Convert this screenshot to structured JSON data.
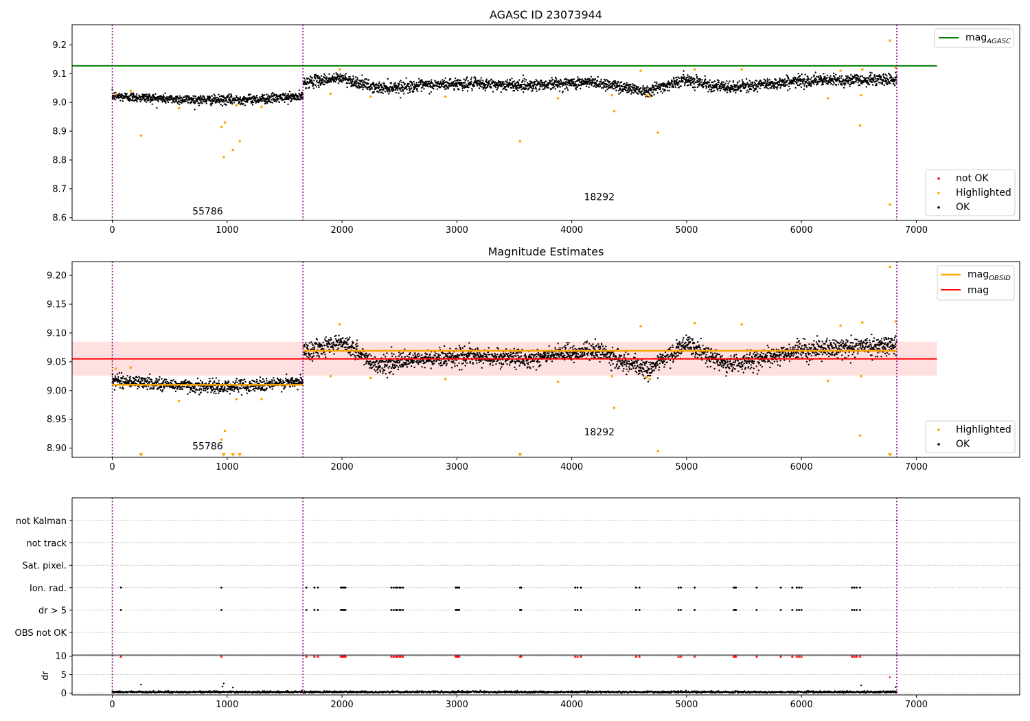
{
  "chart_data": [
    {
      "type": "scatter",
      "title": "AGASC ID 23073944",
      "xlabel": "",
      "ylabel": "",
      "xlim": [
        -350,
        7900
      ],
      "ylim": [
        8.59,
        9.27
      ],
      "x_ticks": [
        0,
        1000,
        2000,
        3000,
        4000,
        5000,
        6000,
        7000
      ],
      "y_ticks": [
        "8.6",
        "8.7",
        "8.8",
        "8.9",
        "9.0",
        "9.1",
        "9.2"
      ],
      "y_tick_values": [
        8.6,
        8.7,
        8.8,
        8.9,
        9.0,
        9.1,
        9.2
      ],
      "grid": false,
      "vlines": [
        0,
        1660,
        6830
      ],
      "hline": {
        "value": 9.127,
        "x_range": [
          -350,
          7180
        ],
        "color": "#008000"
      },
      "obsid_labels": [
        {
          "text": "55786",
          "x": 830,
          "y": 8.61
        },
        {
          "text": "18292",
          "x": 4240,
          "y": 8.66
        }
      ],
      "legend_top": {
        "position": "top-right",
        "entries": [
          {
            "label": "mag",
            "sub": "AGASC",
            "color": "#008000"
          }
        ]
      },
      "legend_bottom": {
        "position": "bottom-right",
        "entries": [
          {
            "label": "not OK",
            "color": "#ff0000"
          },
          {
            "label": "Highlighted",
            "color": "#ffa500"
          },
          {
            "label": "OK",
            "color": "#000000"
          }
        ]
      },
      "segments": [
        {
          "x_range": [
            0,
            1660
          ],
          "base": 9.015,
          "noise": 0.015,
          "trend": [
            [
              0,
              9.022
            ],
            [
              500,
              9.012
            ],
            [
              900,
              9.008
            ],
            [
              1300,
              9.012
            ],
            [
              1660,
              9.02
            ]
          ]
        },
        {
          "x_range": [
            1665,
            6830
          ],
          "base": 9.07,
          "noise": 0.018,
          "trend": [
            [
              1665,
              9.07
            ],
            [
              2000,
              9.085
            ],
            [
              2300,
              9.05
            ],
            [
              3000,
              9.065
            ],
            [
              3600,
              9.06
            ],
            [
              4200,
              9.07
            ],
            [
              4650,
              9.04
            ],
            [
              5000,
              9.08
            ],
            [
              5350,
              9.05
            ],
            [
              6000,
              9.075
            ],
            [
              6830,
              9.08
            ]
          ]
        }
      ],
      "highlighted": [
        [
          30,
          9.03
        ],
        [
          160,
          9.04
        ],
        [
          250,
          8.885
        ],
        [
          580,
          8.98
        ],
        [
          950,
          8.915
        ],
        [
          970,
          8.81
        ],
        [
          980,
          8.93
        ],
        [
          1050,
          8.835
        ],
        [
          1080,
          8.99
        ],
        [
          1110,
          8.865
        ],
        [
          1300,
          8.985
        ],
        [
          1900,
          9.03
        ],
        [
          1980,
          9.115
        ],
        [
          2250,
          9.02
        ],
        [
          2900,
          9.02
        ],
        [
          3550,
          8.865
        ],
        [
          3880,
          9.015
        ],
        [
          4350,
          9.025
        ],
        [
          4370,
          8.97
        ],
        [
          4600,
          9.11
        ],
        [
          4650,
          9.025
        ],
        [
          4680,
          9.02
        ],
        [
          4750,
          8.895
        ],
        [
          5070,
          9.115
        ],
        [
          5480,
          9.115
        ],
        [
          6230,
          9.015
        ],
        [
          6340,
          9.11
        ],
        [
          6510,
          8.92
        ],
        [
          6520,
          9.025
        ],
        [
          6530,
          9.115
        ],
        [
          6770,
          9.215
        ],
        [
          6770,
          8.645
        ],
        [
          6820,
          9.12
        ]
      ]
    },
    {
      "type": "scatter",
      "title": "Magnitude Estimates",
      "xlabel": "",
      "ylabel": "",
      "xlim": [
        -350,
        7900
      ],
      "ylim": [
        8.884,
        9.224
      ],
      "x_ticks": [
        0,
        1000,
        2000,
        3000,
        4000,
        5000,
        6000,
        7000
      ],
      "y_ticks": [
        "8.90",
        "8.95",
        "9.00",
        "9.05",
        "9.10",
        "9.15",
        "9.20"
      ],
      "y_tick_values": [
        8.9,
        8.95,
        9.0,
        9.05,
        9.1,
        9.15,
        9.2
      ],
      "grid": false,
      "vlines": [
        0,
        1660,
        6830
      ],
      "band": {
        "y_range": [
          9.026,
          9.085
        ],
        "x_range": [
          -350,
          7180
        ],
        "color": "#ffcccc"
      },
      "mag_line": {
        "value": 9.055,
        "x_range": [
          -350,
          7180
        ],
        "color": "#ff0000"
      },
      "obsid_mag": [
        {
          "x_range": [
            0,
            1660
          ],
          "value": 9.01,
          "color": "#ffa500"
        },
        {
          "x_range": [
            1665,
            6830
          ],
          "value": 9.069,
          "color": "#ffa500"
        }
      ],
      "obsid_labels": [
        {
          "text": "55786",
          "x": 830,
          "y": 8.898
        },
        {
          "text": "18292",
          "x": 4240,
          "y": 8.922
        }
      ],
      "legend_top": {
        "position": "top-right",
        "entries": [
          {
            "label": "mag",
            "sub": "OBSID",
            "color": "#ffa500"
          },
          {
            "label": "mag",
            "sub": "",
            "color": "#ff0000"
          }
        ]
      },
      "legend_bottom": {
        "position": "bottom-right",
        "entries": [
          {
            "label": "Highlighted",
            "color": "#ffa500"
          },
          {
            "label": "OK",
            "color": "#000000"
          }
        ]
      },
      "segments": [
        {
          "x_range": [
            0,
            1660
          ],
          "base": 9.01,
          "noise": 0.01,
          "trend": [
            [
              0,
              9.018
            ],
            [
              500,
              9.01
            ],
            [
              900,
              9.006
            ],
            [
              1300,
              9.01
            ],
            [
              1660,
              9.015
            ]
          ]
        },
        {
          "x_range": [
            1665,
            6830
          ],
          "base": 9.069,
          "noise": 0.014,
          "trend": [
            [
              1665,
              9.068
            ],
            [
              2000,
              9.085
            ],
            [
              2300,
              9.045
            ],
            [
              3000,
              9.06
            ],
            [
              3600,
              9.055
            ],
            [
              4200,
              9.07
            ],
            [
              4650,
              9.035
            ],
            [
              5000,
              9.08
            ],
            [
              5350,
              9.045
            ],
            [
              6000,
              9.07
            ],
            [
              6830,
              9.08
            ]
          ]
        }
      ],
      "highlighted": [
        [
          30,
          9.038
        ],
        [
          160,
          9.04
        ],
        [
          580,
          8.982
        ],
        [
          950,
          8.915
        ],
        [
          980,
          8.93
        ],
        [
          1080,
          8.985
        ],
        [
          1300,
          8.985
        ],
        [
          1900,
          9.025
        ],
        [
          1980,
          9.115
        ],
        [
          2250,
          9.022
        ],
        [
          2900,
          9.02
        ],
        [
          3880,
          9.015
        ],
        [
          4350,
          9.025
        ],
        [
          4370,
          8.97
        ],
        [
          4600,
          9.112
        ],
        [
          4650,
          9.023
        ],
        [
          4680,
          9.02
        ],
        [
          4750,
          8.895
        ],
        [
          5070,
          9.117
        ],
        [
          5480,
          9.115
        ],
        [
          6230,
          9.017
        ],
        [
          6340,
          9.113
        ],
        [
          6510,
          8.922
        ],
        [
          6520,
          9.025
        ],
        [
          6530,
          9.118
        ],
        [
          6770,
          9.215
        ],
        [
          6820,
          9.12
        ]
      ],
      "off_scale": [
        250,
        970,
        1050,
        1110,
        3550,
        6770
      ]
    },
    {
      "type": "scatter",
      "title": "",
      "xlabel": "",
      "ylabel": "",
      "xlim": [
        -350,
        7900
      ],
      "categories": [
        "not Kalman",
        "not track",
        "Sat. pixel.",
        "Ion. rad.",
        "dr > 5",
        "OBS not OK"
      ],
      "grid": true,
      "vlines": [
        0,
        1660,
        6830
      ],
      "flag_x": [
        75,
        950,
        1690,
        1760,
        1790,
        1990,
        2000,
        2010,
        2020,
        2030,
        2430,
        2450,
        2470,
        2480,
        2500,
        2510,
        2530,
        2990,
        3000,
        3010,
        3020,
        3550,
        3560,
        4030,
        4050,
        4080,
        4560,
        4590,
        4930,
        4950,
        5070,
        5410,
        5420,
        5430,
        5610,
        5820,
        5920,
        5960,
        5980,
        6000,
        6440,
        6460,
        6480,
        6510
      ],
      "not_kalman_x": [
        6830
      ]
    },
    {
      "type": "scatter",
      "title": "",
      "xlabel": "",
      "ylabel": "dr",
      "xlim": [
        -350,
        7900
      ],
      "ylim": [
        -0.5,
        10.3
      ],
      "x_ticks": [
        0,
        1000,
        2000,
        3000,
        4000,
        5000,
        6000,
        7000
      ],
      "y_ticks": [
        "0",
        "5",
        "10"
      ],
      "y_tick_values": [
        0,
        5,
        10
      ],
      "grid": true,
      "vlines": [
        0,
        1660,
        6830
      ],
      "dr_base": 0.3,
      "dr_noise": 0.25,
      "capped_value": 10,
      "outliers": [
        [
          250,
          2.3
        ],
        [
          960,
          1.8
        ],
        [
          970,
          2.6
        ],
        [
          1050,
          1.5
        ],
        [
          6520,
          2.1
        ],
        [
          6770,
          4.3
        ],
        [
          6820,
          1.6
        ]
      ]
    }
  ]
}
